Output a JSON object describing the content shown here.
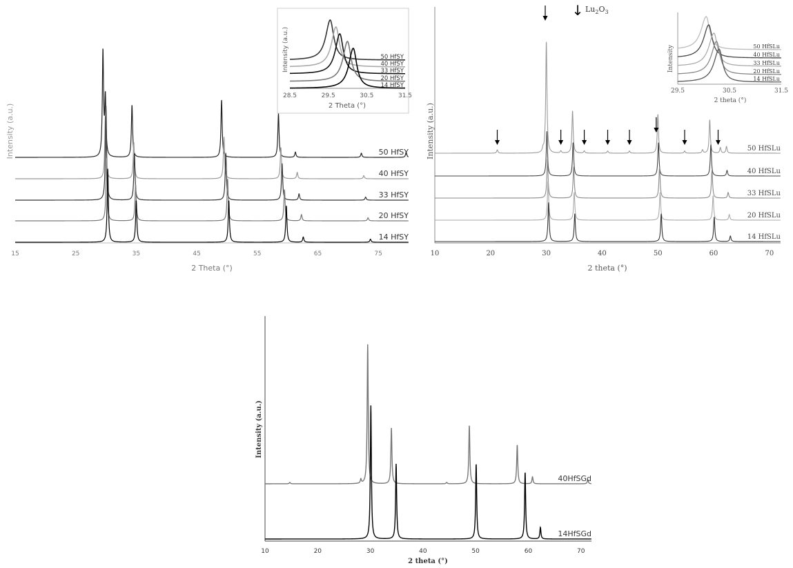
{
  "chart_data": [
    {
      "type": "line",
      "title": "",
      "xlabel": "2 Theta (°)",
      "ylabel": "Intensity (a.u.)",
      "xlim": [
        15,
        80
      ],
      "x_ticks": [
        15,
        25,
        35,
        45,
        55,
        65,
        75
      ],
      "grid": false,
      "series": [
        {
          "name": "50 HfSY",
          "peaks": [
            [
              29.5,
              1.0
            ],
            [
              29.9,
              0.55
            ],
            [
              34.3,
              0.5
            ],
            [
              49.1,
              0.55
            ],
            [
              58.5,
              0.42
            ],
            [
              61.3,
              0.05
            ],
            [
              72.2,
              0.04
            ],
            [
              79.6,
              0.05
            ]
          ]
        },
        {
          "name": "40 HfSY",
          "peaks": [
            [
              29.9,
              0.6
            ],
            [
              34.6,
              0.35
            ],
            [
              49.5,
              0.4
            ],
            [
              58.9,
              0.3
            ],
            [
              61.6,
              0.06
            ],
            [
              72.6,
              0.03
            ]
          ]
        },
        {
          "name": "33 HfSY",
          "peaks": [
            [
              30.0,
              0.9
            ],
            [
              34.7,
              0.45
            ],
            [
              49.8,
              0.45
            ],
            [
              59.1,
              0.35
            ],
            [
              61.9,
              0.06
            ],
            [
              72.9,
              0.03
            ]
          ]
        },
        {
          "name": "20 HfSY",
          "peaks": [
            [
              30.1,
              0.6
            ],
            [
              34.9,
              0.35
            ],
            [
              50.1,
              0.4
            ],
            [
              59.5,
              0.3
            ],
            [
              62.3,
              0.06
            ],
            [
              73.3,
              0.03
            ]
          ]
        },
        {
          "name": "14 HfSY",
          "peaks": [
            [
              30.3,
              0.7
            ],
            [
              35.0,
              0.4
            ],
            [
              50.3,
              0.4
            ],
            [
              59.8,
              0.35
            ],
            [
              62.6,
              0.05
            ],
            [
              73.7,
              0.03
            ]
          ]
        }
      ],
      "inset": {
        "xlabel": "2 Theta (°)",
        "ylabel": "Intensity (a.u.)",
        "xlim": [
          28.5,
          31.5
        ],
        "x_ticks": [
          "28.5",
          "29.5",
          "30.5",
          "31.5"
        ],
        "series": [
          {
            "name": "50 HfSY",
            "peak": 29.55
          },
          {
            "name": "40 HfSY",
            "peak": 29.7
          },
          {
            "name": "33 HfSY",
            "peak": 29.8
          },
          {
            "name": "20 HfSY",
            "peak": 30.0
          },
          {
            "name": "14 HfSY",
            "peak": 30.15
          }
        ]
      }
    },
    {
      "type": "line",
      "title": "",
      "xlabel": "2 theta (°)",
      "ylabel": "Intensity (a.u.)",
      "xlim": [
        10,
        72
      ],
      "x_ticks": [
        10,
        20,
        30,
        40,
        50,
        60,
        70
      ],
      "grid": false,
      "legend_marker": {
        "symbol": "↓",
        "label_base": "Lu",
        "label_sub1": "2",
        "label_mid": "O",
        "label_sub2": "3"
      },
      "arrow_positions": [
        21.2,
        29.8,
        32.6,
        36.8,
        41.0,
        44.9,
        49.7,
        54.8,
        60.8
      ],
      "series": [
        {
          "name": "50 HfSLu",
          "peaks": [
            [
              21.2,
              0.03
            ],
            [
              29.4,
              0.03
            ],
            [
              30.0,
              1.0
            ],
            [
              32.6,
              0.02
            ],
            [
              34.7,
              0.38
            ],
            [
              36.8,
              0.02
            ],
            [
              41.0,
              0.02
            ],
            [
              44.9,
              0.02
            ],
            [
              50.0,
              0.35
            ],
            [
              54.8,
              0.02
            ],
            [
              58.0,
              0.03
            ],
            [
              59.3,
              0.3
            ],
            [
              61.2,
              0.05
            ],
            [
              62.3,
              0.06
            ]
          ]
        },
        {
          "name": "40 HfSLu",
          "peaks": [
            [
              30.1,
              0.4
            ],
            [
              34.8,
              0.3
            ],
            [
              50.1,
              0.3
            ],
            [
              59.5,
              0.28
            ],
            [
              62.4,
              0.05
            ]
          ]
        },
        {
          "name": "33 HfSLu",
          "peaks": [
            [
              30.2,
              0.35
            ],
            [
              34.9,
              0.28
            ],
            [
              50.3,
              0.28
            ],
            [
              59.7,
              0.25
            ],
            [
              62.6,
              0.05
            ]
          ]
        },
        {
          "name": "20 HfSLu",
          "peaks": [
            [
              30.3,
              0.35
            ],
            [
              35.0,
              0.25
            ],
            [
              50.4,
              0.25
            ],
            [
              59.9,
              0.22
            ],
            [
              62.8,
              0.05
            ]
          ]
        },
        {
          "name": "14 HfSLu",
          "peaks": [
            [
              30.4,
              0.35
            ],
            [
              35.1,
              0.25
            ],
            [
              50.6,
              0.25
            ],
            [
              60.1,
              0.22
            ],
            [
              63.0,
              0.05
            ]
          ]
        }
      ],
      "inset": {
        "xlabel": "2 theta (°)",
        "ylabel": "Intensity",
        "xlim": [
          29.5,
          31.5
        ],
        "x_ticks": [
          "29.5",
          "30.5",
          "31.5"
        ],
        "series": [
          {
            "name": "50 HfSLu",
            "peak": 30.05
          },
          {
            "name": "40 HfSLu",
            "peak": 30.1
          },
          {
            "name": "33 HfSLu",
            "peak": 30.2
          },
          {
            "name": "20 HfSLu",
            "peak": 30.25
          },
          {
            "name": "14 HfSLu",
            "peak": 30.3
          }
        ]
      }
    },
    {
      "type": "line",
      "title": "",
      "xlabel": "2 theta (°)",
      "ylabel": "Intensity (a.u.)",
      "xlim": [
        10,
        72
      ],
      "x_ticks": [
        10,
        20,
        30,
        40,
        50,
        60,
        70
      ],
      "grid": false,
      "series": [
        {
          "name": "40HfSGd",
          "peaks": [
            [
              14.7,
              0.01
            ],
            [
              28.2,
              0.03
            ],
            [
              29.5,
              1.0
            ],
            [
              34.0,
              0.4
            ],
            [
              44.5,
              0.01
            ],
            [
              48.8,
              0.42
            ],
            [
              57.9,
              0.28
            ],
            [
              60.8,
              0.05
            ],
            [
              71.3,
              0.03
            ]
          ]
        },
        {
          "name": "14HfSGd",
          "peaks": [
            [
              30.1,
              0.8
            ],
            [
              34.9,
              0.45
            ],
            [
              50.1,
              0.45
            ],
            [
              59.4,
              0.4
            ],
            [
              62.3,
              0.07
            ]
          ]
        }
      ]
    }
  ]
}
